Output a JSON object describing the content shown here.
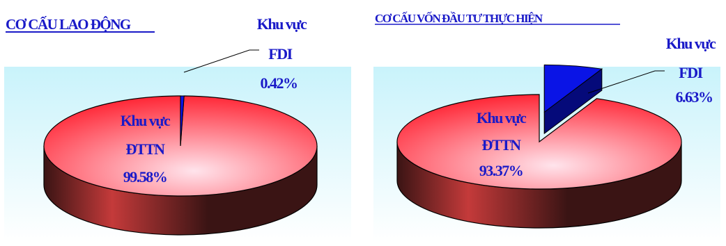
{
  "colors": {
    "title": "#1a1ac8",
    "label": "#1a1ac8",
    "dttn_top_light": "#ffe4ec",
    "dttn_top_dark": "#ff0f1f",
    "side_light": "#c43a3a",
    "side_dark": "#3a1414",
    "fdi_blue": "#0a14e6",
    "fdi_blue_dark": "#050a7a",
    "backdrop_top": "#c9f3fb",
    "backdrop_bottom": "#ffffff"
  },
  "chart_data": [
    {
      "type": "pie",
      "title": "CƠ CẤU LAO ĐỘNG",
      "slices": [
        {
          "label_lines": [
            "Khu vực",
            "ĐTTN"
          ],
          "value_text": "99.58%",
          "value": 99.58
        },
        {
          "label_lines": [
            "Khu vực",
            "FDI"
          ],
          "value_text": "0.42%",
          "value": 0.42
        }
      ]
    },
    {
      "type": "pie",
      "title": "CƠ CẤU VỐN ĐẦU TƯ THỰC HIỆN",
      "slices": [
        {
          "label_lines": [
            "Khu vực",
            "ĐTTN"
          ],
          "value_text": "93.37%",
          "value": 93.37
        },
        {
          "label_lines": [
            "Khu vực",
            "FDI"
          ],
          "value_text": "6.63%",
          "value": 6.63
        }
      ]
    }
  ]
}
